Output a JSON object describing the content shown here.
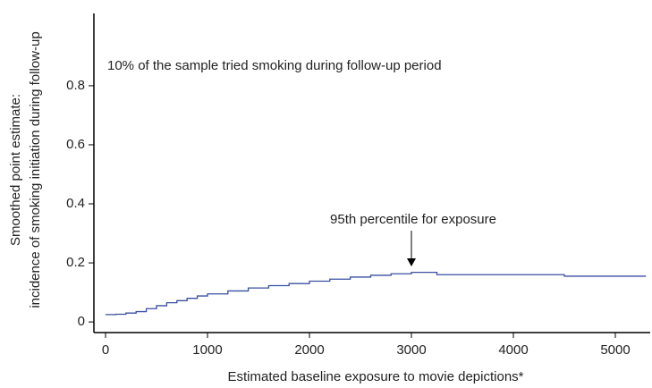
{
  "chart_data": {
    "type": "line",
    "annotation": "10% of the sample tried smoking during follow-up period",
    "arrow_label": "95th percentile for exposure",
    "xlabel": "Estimated baseline exposure to movie depictions*",
    "ylabel": [
      "Smoothed point estimate:",
      "incidence of smoking initiation during follow-up"
    ],
    "x": [
      0,
      100,
      200,
      300,
      400,
      500,
      600,
      700,
      800,
      900,
      1000,
      1200,
      1400,
      1600,
      1800,
      2000,
      2200,
      2400,
      2600,
      2800,
      3000,
      3250,
      3500,
      4000,
      4500,
      5000,
      5300
    ],
    "values": [
      0.025,
      0.026,
      0.03,
      0.035,
      0.045,
      0.055,
      0.065,
      0.072,
      0.08,
      0.088,
      0.095,
      0.105,
      0.115,
      0.123,
      0.13,
      0.138,
      0.145,
      0.152,
      0.158,
      0.163,
      0.168,
      0.16,
      0.16,
      0.16,
      0.155,
      0.155,
      0.155
    ],
    "color": "#3a4fa0",
    "step": true,
    "xlim": [
      -114,
      5342
    ],
    "xticks": [
      0,
      1000,
      2000,
      3000,
      4000,
      5000
    ],
    "ylim": [
      -0.036,
      1.045
    ],
    "yticks": [
      0,
      0.2,
      0.4,
      0.6,
      0.8
    ]
  }
}
